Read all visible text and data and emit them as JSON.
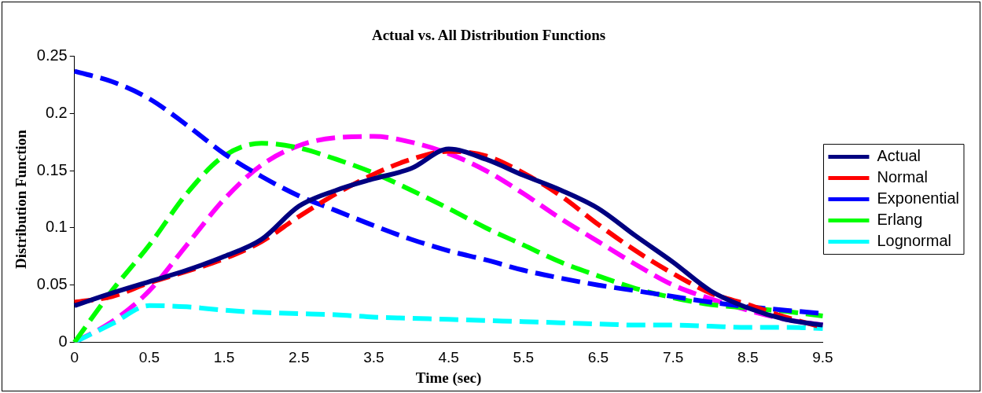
{
  "chart_data": {
    "type": "line",
    "title": "Actual vs. All Distribution Functions",
    "xlabel": "Time (sec)",
    "ylabel": "Distribution Function",
    "categories": [
      "0",
      null,
      "0.5",
      null,
      "1.5",
      null,
      "2.5",
      null,
      "3.5",
      null,
      "4.5",
      null,
      "5.5",
      null,
      "6.5",
      null,
      "7.5",
      null,
      "8.5",
      null,
      "9.5"
    ],
    "ylim": [
      0,
      0.25
    ],
    "yticks": [
      0,
      0.05,
      0.1,
      0.15,
      0.2,
      0.25
    ],
    "grid": false,
    "legend": "right",
    "marker": "none",
    "series": [
      {
        "name": "Actual",
        "color": "#000080",
        "line_style": "solid",
        "values": [
          0.032,
          0.043,
          0.053,
          0.063,
          0.075,
          0.09,
          0.119,
          0.133,
          0.143,
          0.152,
          0.169,
          0.16,
          0.146,
          0.133,
          0.117,
          0.093,
          0.07,
          0.045,
          0.03,
          0.02,
          0.015
        ]
      },
      {
        "name": "Normal",
        "color": "#ff0000",
        "line_style": "dashed",
        "values": [
          0.035,
          0.04,
          0.052,
          0.062,
          0.073,
          0.088,
          0.11,
          0.13,
          0.147,
          0.16,
          0.167,
          0.163,
          0.148,
          0.128,
          0.103,
          0.08,
          0.06,
          0.043,
          0.033,
          0.022,
          0.013
        ]
      },
      {
        "name": "Exponential",
        "color": "#0000ff",
        "line_style": "dashed",
        "values": [
          0.237,
          0.228,
          0.213,
          0.19,
          0.165,
          0.145,
          0.128,
          0.115,
          0.102,
          0.09,
          0.08,
          0.072,
          0.063,
          0.056,
          0.05,
          0.045,
          0.04,
          0.035,
          0.031,
          0.028,
          0.025
        ]
      },
      {
        "name": "Erlang",
        "color": "#00ff00",
        "line_style": "dashed",
        "values": [
          0,
          0.045,
          0.085,
          0.13,
          0.163,
          0.174,
          0.17,
          0.16,
          0.148,
          0.133,
          0.117,
          0.1,
          0.085,
          0.07,
          0.058,
          0.047,
          0.039,
          0.033,
          0.03,
          0.027,
          0.023
        ]
      },
      {
        "name": "Lognormal",
        "color": "#00ffff",
        "line_style": "dashed",
        "values": [
          0,
          0.016,
          0.032,
          0.031,
          0.028,
          0.026,
          0.025,
          0.024,
          0.022,
          0.021,
          0.02,
          0.019,
          0.018,
          0.017,
          0.016,
          0.015,
          0.015,
          0.014,
          0.013,
          0.013,
          0.012
        ]
      },
      {
        "color": "#ff00ff",
        "line_style": "dashed",
        "values": [
          0,
          0.018,
          0.045,
          0.085,
          0.125,
          0.155,
          0.172,
          0.179,
          0.18,
          0.175,
          0.165,
          0.15,
          0.13,
          0.108,
          0.088,
          0.068,
          0.05,
          0.038,
          0.028,
          0.02,
          0.015
        ]
      }
    ]
  }
}
